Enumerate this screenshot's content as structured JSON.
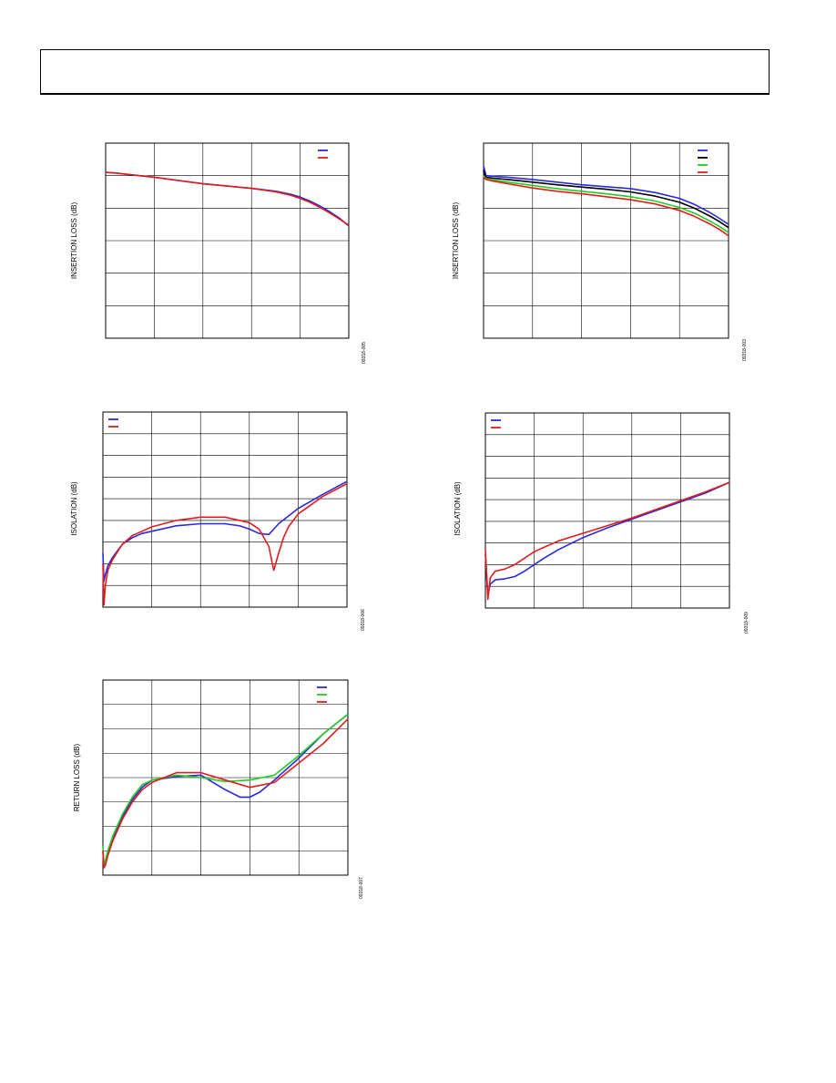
{
  "page": {
    "header_text": ""
  },
  "colors": {
    "blue": "#2a2adc",
    "red": "#e01c1c",
    "green": "#22cc22",
    "black": "#000000",
    "grid": "#000000"
  },
  "chart_data": [
    {
      "id": "chart1",
      "type": "line",
      "ylabel": "INSERTION LOSS (dB)",
      "fig_code": "09318-005",
      "xlim": [
        0,
        5
      ],
      "ylim": [
        -6,
        0
      ],
      "grid": {
        "x": 5,
        "y": 6
      },
      "legend": "top-right",
      "series": [
        {
          "color": "blue",
          "x": [
            0,
            0.2,
            0.5,
            1,
            1.5,
            2,
            2.5,
            3,
            3.5,
            3.8,
            4,
            4.2,
            4.4,
            4.6,
            4.8,
            5
          ],
          "y": [
            -0.9,
            -0.92,
            -0.97,
            -1.05,
            -1.15,
            -1.25,
            -1.32,
            -1.39,
            -1.48,
            -1.57,
            -1.66,
            -1.78,
            -1.93,
            -2.1,
            -2.3,
            -2.55
          ]
        },
        {
          "color": "red",
          "x": [
            0,
            0.2,
            0.5,
            1,
            1.5,
            2,
            2.5,
            3,
            3.5,
            3.8,
            4,
            4.2,
            4.4,
            4.6,
            4.8,
            5
          ],
          "y": [
            -0.9,
            -0.92,
            -0.97,
            -1.05,
            -1.15,
            -1.25,
            -1.32,
            -1.39,
            -1.5,
            -1.6,
            -1.7,
            -1.82,
            -1.97,
            -2.14,
            -2.33,
            -2.52
          ]
        }
      ]
    },
    {
      "id": "chart2",
      "type": "line",
      "ylabel": "INSERTION LOSS (dB)",
      "fig_code": "09318-003",
      "xlim": [
        0,
        5
      ],
      "ylim": [
        -6,
        0
      ],
      "grid": {
        "x": 5,
        "y": 6
      },
      "legend": "top-right",
      "series": [
        {
          "color": "blue",
          "x": [
            0,
            0.05,
            0.2,
            0.5,
            1,
            1.5,
            2,
            2.5,
            3,
            3.5,
            4,
            4.3,
            4.6,
            4.8,
            5
          ],
          "y": [
            -0.7,
            -1.0,
            -1.02,
            -1.05,
            -1.12,
            -1.2,
            -1.28,
            -1.34,
            -1.4,
            -1.52,
            -1.7,
            -1.88,
            -2.12,
            -2.3,
            -2.5
          ]
        },
        {
          "color": "black",
          "x": [
            0,
            0.05,
            0.2,
            0.5,
            1,
            1.5,
            2,
            2.5,
            3,
            3.5,
            4,
            4.3,
            4.6,
            4.8,
            5
          ],
          "y": [
            -0.85,
            -1.05,
            -1.08,
            -1.12,
            -1.2,
            -1.28,
            -1.35,
            -1.42,
            -1.5,
            -1.63,
            -1.82,
            -2.0,
            -2.23,
            -2.4,
            -2.6
          ]
        },
        {
          "color": "green",
          "x": [
            0,
            0.05,
            0.2,
            0.5,
            1,
            1.5,
            2,
            2.5,
            3,
            3.5,
            4,
            4.3,
            4.6,
            4.8,
            5
          ],
          "y": [
            -1.0,
            -1.1,
            -1.13,
            -1.2,
            -1.3,
            -1.4,
            -1.48,
            -1.56,
            -1.65,
            -1.78,
            -1.98,
            -2.15,
            -2.38,
            -2.55,
            -2.75
          ]
        },
        {
          "color": "red",
          "x": [
            0,
            0.05,
            0.2,
            0.5,
            1,
            1.5,
            2,
            2.5,
            3,
            3.5,
            4,
            4.3,
            4.6,
            4.8,
            5
          ],
          "y": [
            -1.05,
            -1.12,
            -1.17,
            -1.25,
            -1.38,
            -1.48,
            -1.56,
            -1.65,
            -1.74,
            -1.87,
            -2.07,
            -2.25,
            -2.47,
            -2.64,
            -2.85
          ]
        }
      ]
    },
    {
      "id": "chart3",
      "type": "line",
      "ylabel": "ISOLATION (dB)",
      "fig_code": "09318-006",
      "xlim": [
        0,
        5
      ],
      "ylim": [
        -90,
        0
      ],
      "grid": {
        "x": 5,
        "y": 9
      },
      "legend": "top-left",
      "series": [
        {
          "color": "blue",
          "x": [
            0,
            0.02,
            0.05,
            0.1,
            0.2,
            0.4,
            0.6,
            0.8,
            1,
            1.5,
            2,
            2.5,
            2.8,
            3,
            3.2,
            3.4,
            3.6,
            4,
            4.5,
            5
          ],
          "y": [
            -65,
            -78,
            -75,
            -71,
            -67,
            -61,
            -58,
            -56,
            -55,
            -52.5,
            -51.5,
            -51.5,
            -52.5,
            -54,
            -56,
            -56.5,
            -51.5,
            -44.5,
            -38,
            -32
          ]
        },
        {
          "color": "red",
          "x": [
            0,
            0.02,
            0.05,
            0.1,
            0.2,
            0.4,
            0.6,
            0.8,
            1,
            1.5,
            2,
            2.5,
            3,
            3.2,
            3.4,
            3.5,
            3.6,
            3.7,
            3.8,
            4,
            4.5,
            5
          ],
          "y": [
            -70,
            -89,
            -80,
            -73,
            -68,
            -61,
            -57,
            -55,
            -53,
            -50,
            -48.5,
            -48.5,
            -51,
            -54,
            -62,
            -73,
            -65,
            -58,
            -53,
            -47,
            -39,
            -33
          ]
        }
      ]
    },
    {
      "id": "chart4",
      "type": "line",
      "ylabel": "ISOLATION (dB)",
      "fig_code": "09318-009",
      "xlim": [
        0,
        5
      ],
      "ylim": [
        -90,
        0
      ],
      "grid": {
        "x": 5,
        "y": 9
      },
      "legend": "top-left",
      "series": [
        {
          "color": "blue",
          "x": [
            0,
            0.05,
            0.1,
            0.2,
            0.4,
            0.6,
            0.8,
            1,
            1.2,
            1.5,
            2,
            2.5,
            3,
            3.5,
            4,
            4.5,
            5
          ],
          "y": [
            -65,
            -84,
            -79,
            -77,
            -76.5,
            -75.5,
            -73,
            -70,
            -67,
            -63,
            -57.5,
            -53,
            -49,
            -45,
            -41,
            -37,
            -32
          ]
        },
        {
          "color": "red",
          "x": [
            0,
            0.05,
            0.1,
            0.2,
            0.4,
            0.6,
            0.8,
            1,
            1.2,
            1.5,
            2,
            2.5,
            3,
            3.5,
            4,
            4.5,
            5
          ],
          "y": [
            -63,
            -86,
            -76,
            -73,
            -72,
            -70,
            -67,
            -64,
            -62,
            -59,
            -55.5,
            -52,
            -48.5,
            -44.5,
            -40.5,
            -36.5,
            -32
          ]
        }
      ]
    },
    {
      "id": "chart5",
      "type": "line",
      "ylabel": "RETURN LOSS (dB)",
      "fig_code": "09318-007",
      "xlim": [
        0,
        5
      ],
      "ylim": [
        -40,
        0
      ],
      "grid": {
        "x": 5,
        "y": 8
      },
      "legend": "top-right",
      "series": [
        {
          "color": "blue",
          "x": [
            0,
            0.02,
            0.05,
            0.1,
            0.2,
            0.4,
            0.6,
            0.8,
            1,
            1.5,
            2,
            2.5,
            2.8,
            3,
            3.2,
            3.5,
            4,
            4.5,
            5
          ],
          "y": [
            -35,
            -38,
            -37.5,
            -35.5,
            -32.5,
            -28,
            -24.5,
            -22,
            -20.5,
            -19.8,
            -19.5,
            -22.5,
            -24,
            -24,
            -23,
            -20.5,
            -16,
            -11,
            -7
          ]
        },
        {
          "color": "green",
          "x": [
            0,
            0.02,
            0.05,
            0.1,
            0.2,
            0.4,
            0.6,
            0.8,
            1,
            1.5,
            2,
            2.5,
            3,
            3.5,
            4,
            4.5,
            5
          ],
          "y": [
            -34,
            -38,
            -37,
            -35,
            -32,
            -27.5,
            -24,
            -21.5,
            -20.5,
            -19.5,
            -20,
            -20.8,
            -20.5,
            -19.5,
            -15.5,
            -11,
            -7
          ]
        },
        {
          "color": "red",
          "x": [
            0,
            0.02,
            0.05,
            0.1,
            0.2,
            0.4,
            0.6,
            0.8,
            1,
            1.5,
            2,
            2.5,
            3,
            3.5,
            4,
            4.5,
            5
          ],
          "y": [
            -35,
            -38.5,
            -38,
            -36,
            -33,
            -28.5,
            -25,
            -22.5,
            -21,
            -19,
            -19,
            -20.5,
            -22,
            -21,
            -17,
            -13,
            -8
          ]
        }
      ]
    }
  ]
}
